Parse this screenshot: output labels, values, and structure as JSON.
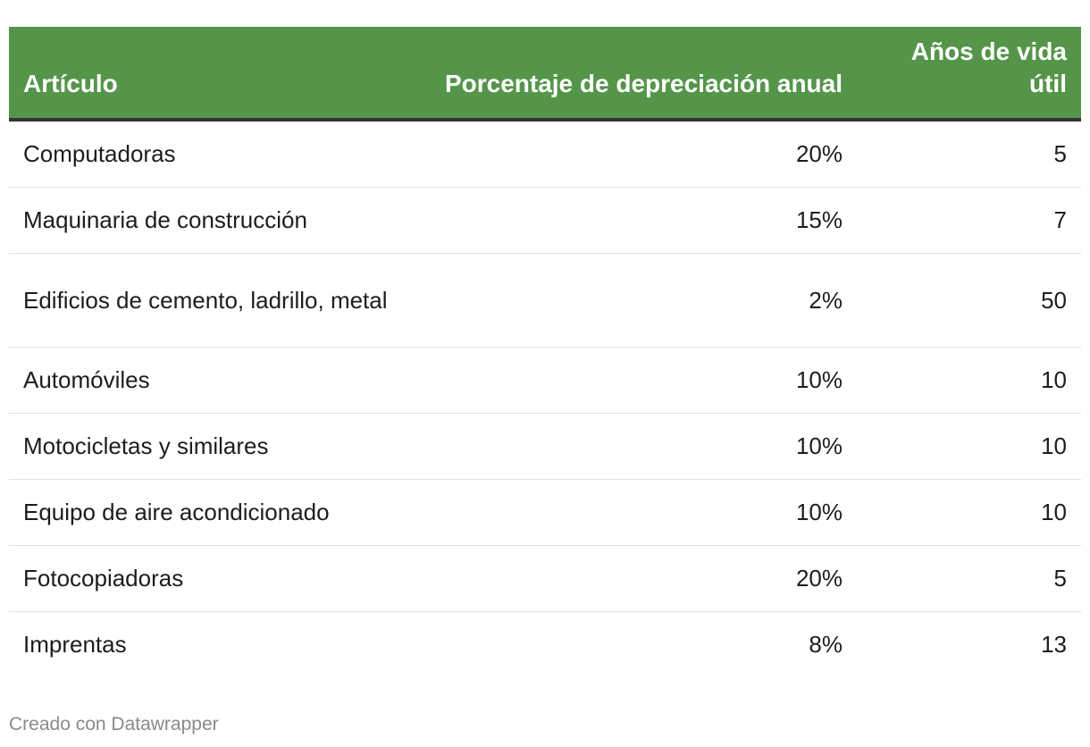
{
  "table": {
    "headers": {
      "item": "Artículo",
      "percentage": "Porcentaje de depreciación anual",
      "years": "Años de vida útil"
    },
    "rows": [
      {
        "item": "Computadoras",
        "percentage": "20%",
        "years": "5"
      },
      {
        "item": "Maquinaria de construcción",
        "percentage": "15%",
        "years": "7"
      },
      {
        "item": "Edificios de cemento, ladrillo, metal",
        "percentage": "2%",
        "years": "50"
      },
      {
        "item": "Automóviles",
        "percentage": "10%",
        "years": "10"
      },
      {
        "item": "Motocicletas y similares",
        "percentage": "10%",
        "years": "10"
      },
      {
        "item": "Equipo de aire acondicionado",
        "percentage": "10%",
        "years": "10"
      },
      {
        "item": "Fotocopiadoras",
        "percentage": "20%",
        "years": "5"
      },
      {
        "item": "Imprentas",
        "percentage": "8%",
        "years": "13"
      }
    ]
  },
  "footer": {
    "credit": "Creado con Datawrapper"
  },
  "colors": {
    "header_background": "#55954a",
    "header_text": "#ffffff",
    "divider": "#333333"
  }
}
